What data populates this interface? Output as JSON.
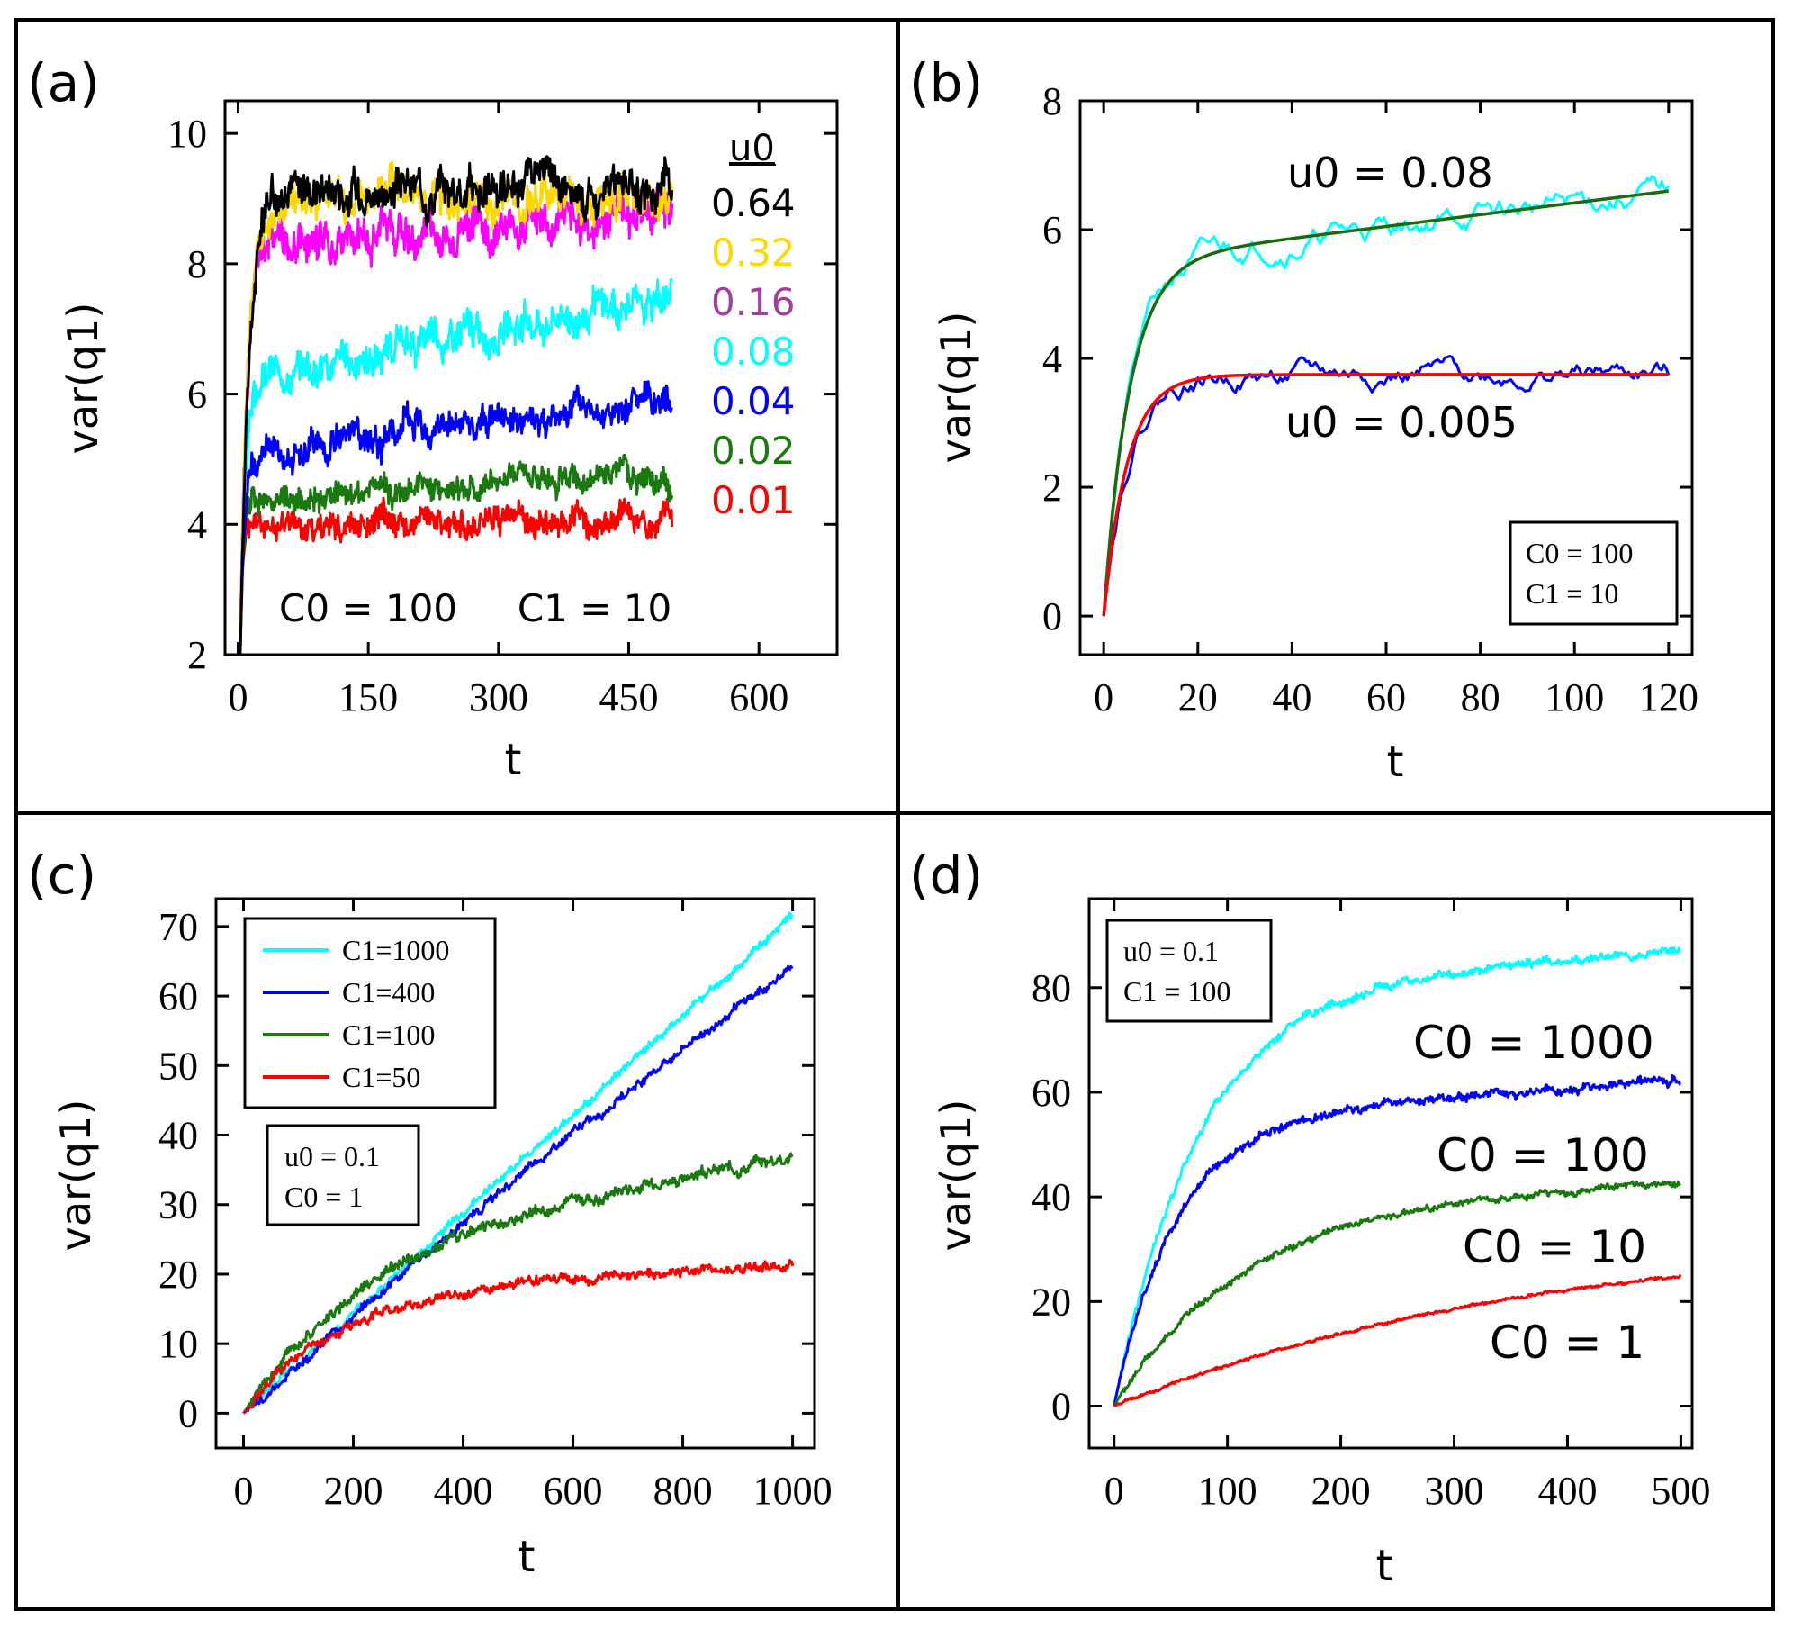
{
  "figure": {
    "panel_labels": [
      "(a)",
      "(b)",
      "(c)",
      "(d)"
    ]
  },
  "chart_data": [
    {
      "id": "a",
      "type": "line",
      "panel_label": "(a)",
      "xlabel": "t",
      "ylabel": "var(q1)",
      "xlim": [
        -15,
        690
      ],
      "ylim": [
        2,
        10.5
      ],
      "xticks": [
        0,
        150,
        300,
        450,
        600
      ],
      "yticks": [
        2,
        4,
        6,
        8,
        10
      ],
      "legend_title": "u0",
      "annotation": "C0 = 100     C1 = 10",
      "series": [
        {
          "name": "0.01",
          "color": "#ff0000",
          "plateau": 4.0,
          "tau": 3,
          "drift": 0.1,
          "noise": 0.3,
          "seed": 11
        },
        {
          "name": "0.02",
          "color": "#1a7a0f",
          "plateau": 4.4,
          "tau": 4,
          "drift": 0.3,
          "noise": 0.3,
          "seed": 12
        },
        {
          "name": "0.04",
          "color": "#0000ff",
          "plateau": 5.1,
          "tau": 5,
          "drift": 0.7,
          "noise": 0.35,
          "seed": 13
        },
        {
          "name": "0.08",
          "color": "#00ffff",
          "plateau": 6.2,
          "tau": 6,
          "drift": 1.3,
          "noise": 0.4,
          "seed": 14
        },
        {
          "name": "0.16",
          "color": "#ff00ff",
          "plateau": 8.3,
          "tau": 8,
          "drift": 0.5,
          "noise": 0.45,
          "seed": 15
        },
        {
          "name": "0.32",
          "color": "#ffd700",
          "plateau": 8.9,
          "tau": 9,
          "drift": 0.2,
          "noise": 0.4,
          "seed": 16
        },
        {
          "name": "0.64",
          "color": "#000000",
          "plateau": 9.1,
          "tau": 10,
          "drift": 0.1,
          "noise": 0.4,
          "seed": 17
        }
      ],
      "t_range": [
        0,
        500
      ]
    },
    {
      "id": "b",
      "type": "line",
      "panel_label": "(b)",
      "xlabel": "t",
      "ylabel": "var(q1)",
      "xlim": [
        -5,
        125
      ],
      "ylim": [
        -0.6,
        8
      ],
      "xticks": [
        0,
        20,
        40,
        60,
        80,
        100,
        120
      ],
      "yticks": [
        0,
        2,
        4,
        6,
        8
      ],
      "labels": [
        "u0 = 0.08",
        "u0 = 0.005"
      ],
      "box_lines": [
        "C0 = 100",
        "C1 = 10"
      ],
      "series": [
        {
          "name": "u0 = 0.08 (simulation)",
          "color": "#00ffff",
          "plateau": 5.5,
          "tau": 5.5,
          "drift": 1.1,
          "noise": 0.35,
          "seed": 21,
          "smooth": true
        },
        {
          "name": "u0 = 0.08 (fit)",
          "color": "#1a6a0f",
          "plateau": 5.5,
          "tau": 5.5,
          "drift": 1.1,
          "noise": 0,
          "seed": 0
        },
        {
          "name": "u0 = 0.005 (simulation)",
          "color": "#0000ff",
          "plateau": 3.75,
          "tau": 5,
          "drift": 0,
          "noise": 0.3,
          "seed": 22,
          "smooth": true
        },
        {
          "name": "u0 = 0.005 (fit)",
          "color": "#ff0000",
          "plateau": 3.75,
          "tau": 5,
          "drift": 0,
          "noise": 0,
          "seed": 0
        }
      ],
      "t_range": [
        0,
        120
      ]
    },
    {
      "id": "c",
      "type": "line",
      "panel_label": "(c)",
      "xlabel": "t",
      "ylabel": "var(q1)",
      "xlim": [
        -50,
        1040
      ],
      "ylim": [
        -5,
        74
      ],
      "xticks": [
        0,
        200,
        400,
        600,
        800,
        1000
      ],
      "yticks": [
        0,
        10,
        20,
        30,
        40,
        50,
        60,
        70
      ],
      "legend": [
        "C1=1000",
        "C1=400",
        "C1=100",
        "C1=50"
      ],
      "box_lines": [
        "u0 = 0.1",
        "C0 = 1"
      ],
      "series": [
        {
          "name": "C1=1000",
          "color": "#00ffff",
          "slope": 0.0715,
          "curv": 0.0,
          "noise": 0.9,
          "seed": 31
        },
        {
          "name": "C1=400",
          "color": "#0000ff",
          "slope": 0.0715,
          "curv": 7.5e-06,
          "noise": 0.9,
          "seed": 32
        },
        {
          "name": "C1=100",
          "color": "#1a7a0f",
          "plateau": 25,
          "tau": 230,
          "drift": 12,
          "noise": 1.2,
          "seed": 33
        },
        {
          "name": "C1=50",
          "color": "#ff0000",
          "plateau": 17,
          "tau": 160,
          "drift": 4.5,
          "noise": 1.0,
          "seed": 34
        }
      ],
      "t_range": [
        0,
        1000
      ]
    },
    {
      "id": "d",
      "type": "line",
      "panel_label": "(d)",
      "xlabel": "t",
      "ylabel": "var(q1)",
      "xlim": [
        -22,
        510
      ],
      "ylim": [
        -8,
        97
      ],
      "xticks": [
        0,
        100,
        200,
        300,
        400,
        500
      ],
      "yticks": [
        0,
        20,
        40,
        60,
        80
      ],
      "labels": [
        "C0 = 1000",
        "C0 = 100",
        "C0 = 10",
        "C0 = 1"
      ],
      "box_lines": [
        "u0 = 0.1",
        "C1 = 100"
      ],
      "series": [
        {
          "name": "C0 = 1000",
          "color": "#00ffff",
          "plateau": 80,
          "tau": 75,
          "drift": 7,
          "noise": 1.2,
          "seed": 41
        },
        {
          "name": "C0 = 100",
          "color": "#0000ff",
          "plateau": 55,
          "tau": 55,
          "drift": 7,
          "noise": 1.2,
          "seed": 42
        },
        {
          "name": "C0 = 10",
          "color": "#1a7a0f",
          "plateau": 38,
          "tau": 110,
          "drift": 5,
          "noise": 0.9,
          "seed": 43
        },
        {
          "name": "C0 = 1",
          "color": "#ff0000",
          "plateau": 34,
          "tau": 380,
          "drift": 0,
          "noise": 0.4,
          "seed": 44
        }
      ],
      "t_range": [
        0,
        500
      ]
    }
  ]
}
